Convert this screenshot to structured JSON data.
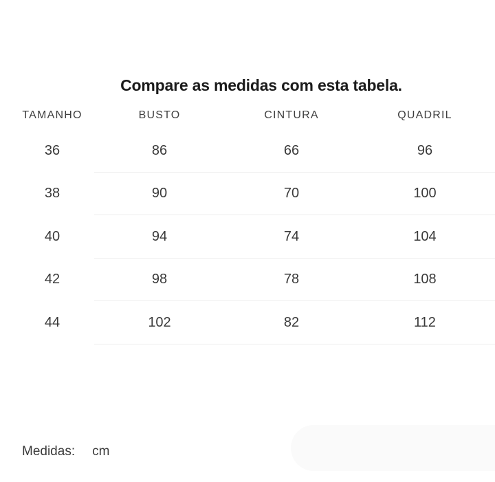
{
  "title": "Compare as medidas com esta tabela.",
  "table": {
    "headers": [
      "TAMANHO",
      "BUSTO",
      "CINTURA",
      "QUADRIL"
    ],
    "rows": [
      [
        "36",
        "86",
        "66",
        "96"
      ],
      [
        "38",
        "90",
        "70",
        "100"
      ],
      [
        "40",
        "94",
        "74",
        "104"
      ],
      [
        "42",
        "98",
        "78",
        "108"
      ],
      [
        "44",
        "102",
        "82",
        "112"
      ]
    ]
  },
  "footer": {
    "label": "Medidas:",
    "unit": "cm"
  },
  "colors": {
    "title-color": "#1b1b1b",
    "header-color": "#3e3e3e",
    "cell-color": "#3a3a3a",
    "divider-color": "#eeeeee",
    "pill-color": "#fafafa"
  }
}
